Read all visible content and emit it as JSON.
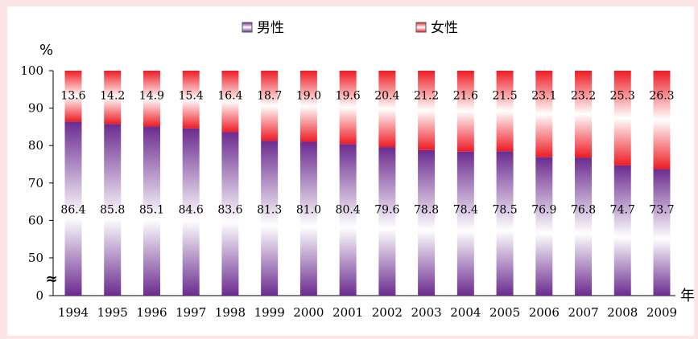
{
  "chart_data": {
    "type": "bar",
    "stacked": true,
    "title": "",
    "xlabel": "年",
    "ylabel": "%",
    "ylim": [
      0,
      100
    ],
    "y_ticks": [
      "0",
      "50",
      "60",
      "70",
      "80",
      "90",
      "100"
    ],
    "axis_break": true,
    "categories": [
      "1994",
      "1995",
      "1996",
      "1997",
      "1998",
      "1999",
      "2000",
      "2001",
      "2002",
      "2003",
      "2004",
      "2005",
      "2006",
      "2007",
      "2008",
      "2009"
    ],
    "series": [
      {
        "name": "男性",
        "color": "#6b2b8f",
        "labels": [
          "86.4",
          "85.8",
          "85.1",
          "84.6",
          "83.6",
          "81.3",
          "81.0",
          "80.4",
          "79.6",
          "78.8",
          "78.4",
          "78.5",
          "76.9",
          "76.8",
          "74.7",
          "73.7"
        ],
        "values": [
          86.4,
          85.8,
          85.1,
          84.6,
          83.6,
          81.3,
          81.0,
          80.4,
          79.6,
          78.8,
          78.4,
          78.5,
          76.9,
          76.8,
          74.7,
          73.7
        ]
      },
      {
        "name": "女性",
        "color": "#ee1c24",
        "labels": [
          "13.6",
          "14.2",
          "14.9",
          "15.4",
          "16.4",
          "18.7",
          "19.0",
          "19.6",
          "20.4",
          "21.2",
          "21.6",
          "21.5",
          "23.1",
          "23.2",
          "25.3",
          "26.3"
        ],
        "values": [
          13.6,
          14.2,
          14.9,
          15.4,
          16.4,
          18.7,
          19.0,
          19.6,
          20.4,
          21.2,
          21.6,
          21.5,
          23.1,
          23.2,
          25.3,
          26.3
        ]
      }
    ],
    "legend_position": "top-center",
    "grid": false
  }
}
